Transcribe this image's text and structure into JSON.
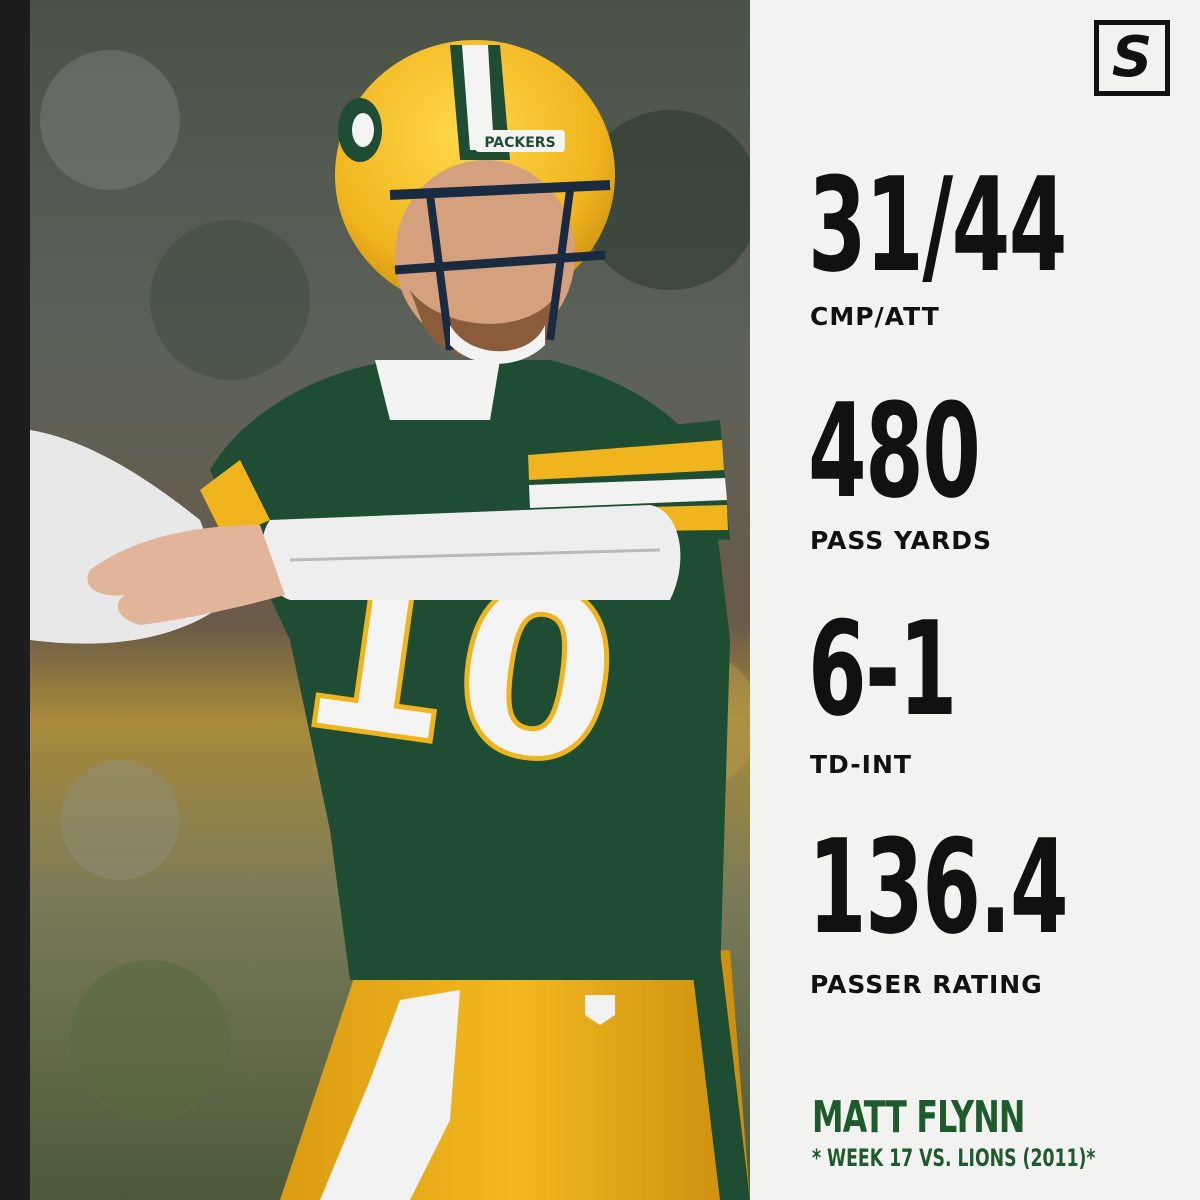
{
  "brand": {
    "logo_letter": "S"
  },
  "photo": {
    "helmet_text": "PACKERS",
    "jersey_number": "10"
  },
  "stats": [
    {
      "value": "31/44",
      "label": "CMP/ATT"
    },
    {
      "value": "480",
      "label": "PASS YARDS"
    },
    {
      "value": "6-1",
      "label": "TD-INT"
    },
    {
      "value": "136.4",
      "label": "PASSER RATING"
    }
  ],
  "player": {
    "name": "MATT FLYNN",
    "game": "* WEEK 17 VS. LIONS (2011)*"
  },
  "colors": {
    "packers_green": "#1f4d33",
    "packers_gold": "#f0b51e",
    "name_green": "#1f5a2c",
    "panel_bg": "#f2f2f0",
    "text_dark": "#111111"
  }
}
